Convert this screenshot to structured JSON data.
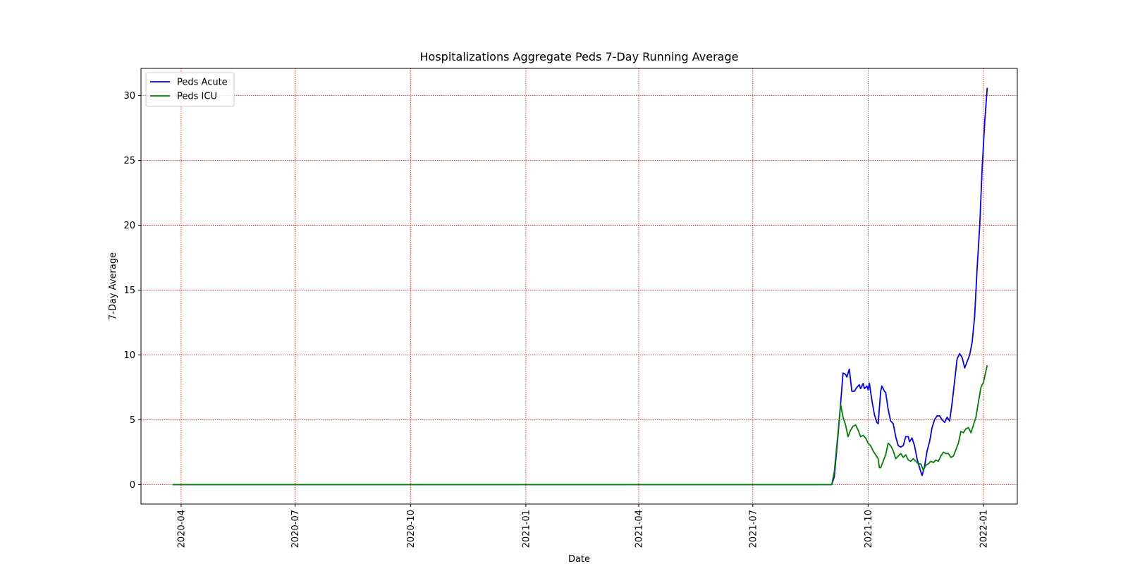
{
  "chart_data": {
    "type": "line",
    "title": "Hospitalizations Aggregate Peds 7-Day Running Average",
    "xlabel": "Date",
    "ylabel": "7-Day Average",
    "xlim": [
      "2020-02-29",
      "2022-01-28"
    ],
    "ylim": [
      -1.5,
      32.1
    ],
    "x_ticks": [
      "2020-04",
      "2020-07",
      "2020-10",
      "2021-01",
      "2021-04",
      "2021-07",
      "2021-10",
      "2022-01"
    ],
    "y_ticks": [
      0,
      5,
      10,
      15,
      20,
      25,
      30
    ],
    "grid": true,
    "grid_color": "#ff0000",
    "legend_position": "top-left",
    "series": [
      {
        "name": "Peds Acute",
        "color": "#0000ff",
        "points": [
          [
            "2020-03-25",
            0
          ],
          [
            "2021-09-02",
            0
          ],
          [
            "2021-09-04",
            0.6
          ],
          [
            "2021-09-07",
            3.8
          ],
          [
            "2021-09-09",
            6.2
          ],
          [
            "2021-09-11",
            8.6
          ],
          [
            "2021-09-13",
            8.5
          ],
          [
            "2021-09-14",
            8.3
          ],
          [
            "2021-09-16",
            8.9
          ],
          [
            "2021-09-18",
            7.2
          ],
          [
            "2021-09-20",
            7.2
          ],
          [
            "2021-09-22",
            7.5
          ],
          [
            "2021-09-24",
            7.7
          ],
          [
            "2021-09-25",
            7.4
          ],
          [
            "2021-09-27",
            7.8
          ],
          [
            "2021-09-28",
            7.4
          ],
          [
            "2021-09-30",
            7.6
          ],
          [
            "2021-10-01",
            7.3
          ],
          [
            "2021-10-02",
            7.8
          ],
          [
            "2021-10-04",
            6.5
          ],
          [
            "2021-10-06",
            5.4
          ],
          [
            "2021-10-08",
            4.8
          ],
          [
            "2021-10-09",
            4.7
          ],
          [
            "2021-10-11",
            7.2
          ],
          [
            "2021-10-12",
            7.6
          ],
          [
            "2021-10-14",
            7.2
          ],
          [
            "2021-10-15",
            7.1
          ],
          [
            "2021-10-17",
            5.8
          ],
          [
            "2021-10-19",
            4.9
          ],
          [
            "2021-10-21",
            4.7
          ],
          [
            "2021-10-23",
            3.7
          ],
          [
            "2021-10-25",
            3.0
          ],
          [
            "2021-10-27",
            2.9
          ],
          [
            "2021-10-29",
            3.0
          ],
          [
            "2021-10-31",
            3.7
          ],
          [
            "2021-11-02",
            3.7
          ],
          [
            "2021-11-03",
            3.3
          ],
          [
            "2021-11-05",
            3.6
          ],
          [
            "2021-11-07",
            3.0
          ],
          [
            "2021-11-09",
            2.0
          ],
          [
            "2021-11-11",
            1.3
          ],
          [
            "2021-11-13",
            0.7
          ],
          [
            "2021-11-15",
            1.4
          ],
          [
            "2021-11-17",
            2.6
          ],
          [
            "2021-11-19",
            3.3
          ],
          [
            "2021-11-21",
            4.4
          ],
          [
            "2021-11-23",
            5.0
          ],
          [
            "2021-11-25",
            5.3
          ],
          [
            "2021-11-27",
            5.3
          ],
          [
            "2021-11-29",
            5.0
          ],
          [
            "2021-12-01",
            4.8
          ],
          [
            "2021-12-03",
            5.2
          ],
          [
            "2021-12-05",
            4.9
          ],
          [
            "2021-12-07",
            6.3
          ],
          [
            "2021-12-09",
            8.0
          ],
          [
            "2021-12-11",
            9.7
          ],
          [
            "2021-12-13",
            10.1
          ],
          [
            "2021-12-15",
            9.8
          ],
          [
            "2021-12-17",
            9.0
          ],
          [
            "2021-12-19",
            9.5
          ],
          [
            "2021-12-21",
            10.0
          ],
          [
            "2021-12-23",
            11.0
          ],
          [
            "2021-12-25",
            13.0
          ],
          [
            "2021-12-27",
            16.8
          ],
          [
            "2021-12-29",
            20.0
          ],
          [
            "2021-12-31",
            24.5
          ],
          [
            "2022-01-02",
            28.0
          ],
          [
            "2022-01-04",
            30.6
          ]
        ]
      },
      {
        "name": "Peds ICU",
        "color": "#008000",
        "points": [
          [
            "2020-03-25",
            0
          ],
          [
            "2021-09-02",
            0
          ],
          [
            "2021-09-04",
            1.0
          ],
          [
            "2021-09-07",
            4.0
          ],
          [
            "2021-09-09",
            6.2
          ],
          [
            "2021-09-11",
            5.2
          ],
          [
            "2021-09-13",
            4.6
          ],
          [
            "2021-09-15",
            3.7
          ],
          [
            "2021-09-17",
            4.2
          ],
          [
            "2021-09-19",
            4.5
          ],
          [
            "2021-09-21",
            4.6
          ],
          [
            "2021-09-23",
            4.2
          ],
          [
            "2021-09-25",
            3.7
          ],
          [
            "2021-09-27",
            3.8
          ],
          [
            "2021-09-29",
            3.6
          ],
          [
            "2021-10-01",
            3.2
          ],
          [
            "2021-10-03",
            3.0
          ],
          [
            "2021-10-05",
            2.6
          ],
          [
            "2021-10-07",
            2.3
          ],
          [
            "2021-10-09",
            2.0
          ],
          [
            "2021-10-10",
            1.3
          ],
          [
            "2021-10-11",
            1.3
          ],
          [
            "2021-10-13",
            1.8
          ],
          [
            "2021-10-15",
            2.3
          ],
          [
            "2021-10-17",
            3.2
          ],
          [
            "2021-10-19",
            3.0
          ],
          [
            "2021-10-21",
            2.6
          ],
          [
            "2021-10-23",
            2.0
          ],
          [
            "2021-10-25",
            2.2
          ],
          [
            "2021-10-27",
            2.4
          ],
          [
            "2021-10-29",
            2.1
          ],
          [
            "2021-10-31",
            2.3
          ],
          [
            "2021-11-02",
            1.9
          ],
          [
            "2021-11-04",
            1.8
          ],
          [
            "2021-11-06",
            2.0
          ],
          [
            "2021-11-08",
            1.8
          ],
          [
            "2021-11-10",
            1.6
          ],
          [
            "2021-11-12",
            1.6
          ],
          [
            "2021-11-14",
            1.1
          ],
          [
            "2021-11-16",
            1.5
          ],
          [
            "2021-11-18",
            1.6
          ],
          [
            "2021-11-20",
            1.8
          ],
          [
            "2021-11-22",
            1.7
          ],
          [
            "2021-11-24",
            1.9
          ],
          [
            "2021-11-26",
            1.8
          ],
          [
            "2021-11-28",
            2.2
          ],
          [
            "2021-11-30",
            2.5
          ],
          [
            "2021-12-02",
            2.4
          ],
          [
            "2021-12-04",
            2.4
          ],
          [
            "2021-12-06",
            2.1
          ],
          [
            "2021-12-08",
            2.2
          ],
          [
            "2021-12-10",
            2.7
          ],
          [
            "2021-12-12",
            3.2
          ],
          [
            "2021-12-14",
            4.1
          ],
          [
            "2021-12-16",
            4.0
          ],
          [
            "2021-12-18",
            4.3
          ],
          [
            "2021-12-20",
            4.4
          ],
          [
            "2021-12-22",
            4.0
          ],
          [
            "2021-12-24",
            4.6
          ],
          [
            "2021-12-26",
            5.2
          ],
          [
            "2021-12-28",
            6.4
          ],
          [
            "2021-12-30",
            7.5
          ],
          [
            "2022-01-01",
            7.9
          ],
          [
            "2022-01-04",
            9.2
          ]
        ]
      }
    ]
  }
}
